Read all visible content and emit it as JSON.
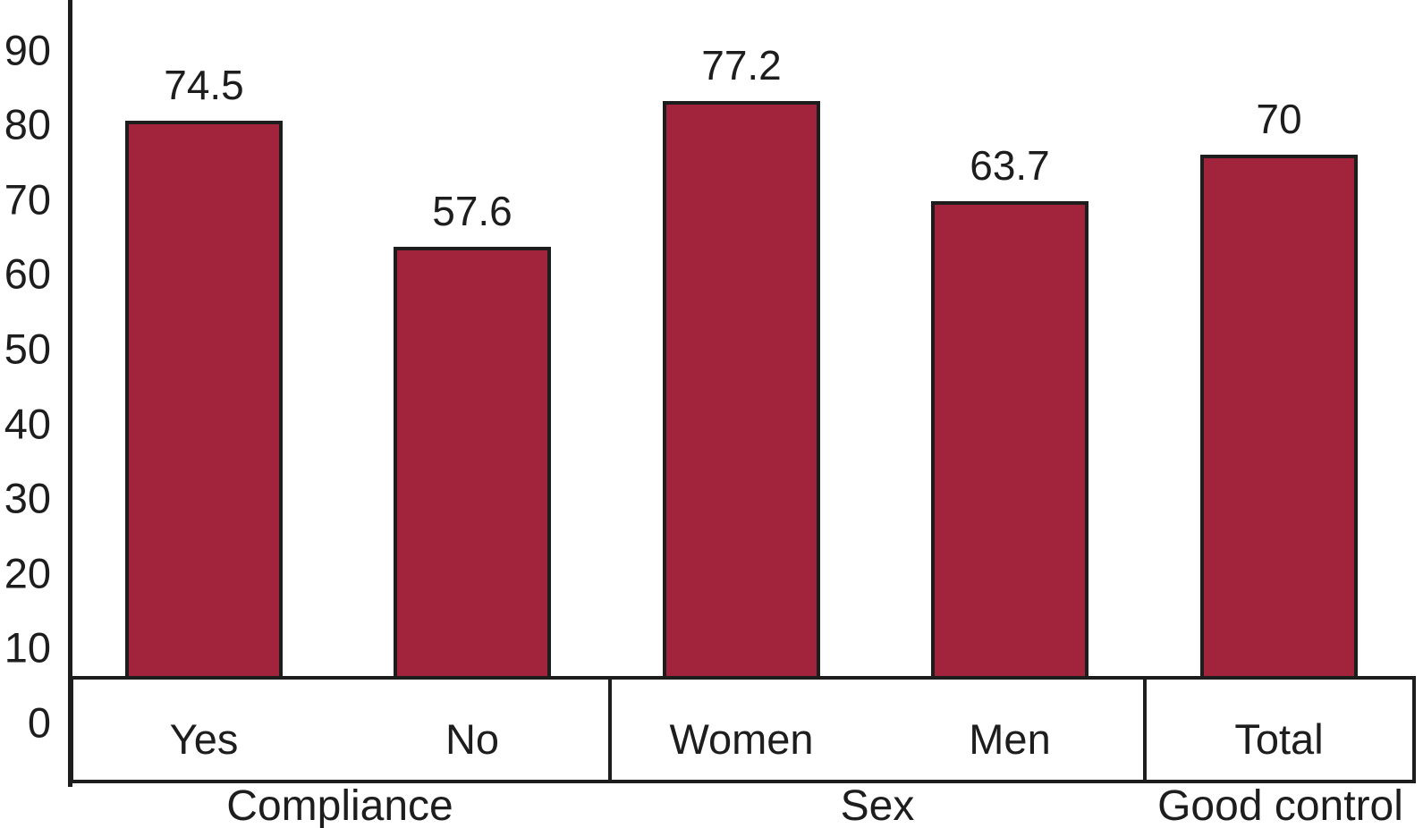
{
  "chart_data": {
    "type": "bar",
    "title": "",
    "categories": [
      "Yes",
      "No",
      "Women",
      "Men",
      "Total"
    ],
    "values": [
      74.5,
      57.6,
      77.2,
      63.7,
      70
    ],
    "value_labels": [
      "74.5",
      "57.6",
      "77.2",
      "63.7",
      "70"
    ],
    "groups": [
      {
        "label": "Compliance",
        "categories": [
          "Yes",
          "No"
        ]
      },
      {
        "label": "Sex",
        "categories": [
          "Women",
          "Men"
        ]
      },
      {
        "label": "Good control",
        "categories": [
          "Total"
        ]
      }
    ],
    "y_ticks": [
      0,
      10,
      20,
      30,
      40,
      50,
      60,
      70,
      80,
      90
    ],
    "ylim": [
      0,
      95
    ],
    "xlabel": "",
    "ylabel": "",
    "grid": false,
    "legend": false,
    "colors": {
      "bar_fill": "#A1243C",
      "bar_border": "#1d1d1d",
      "axis": "#1d1d1d",
      "text": "#1d1d1d",
      "band_background": "#ffffff"
    }
  }
}
